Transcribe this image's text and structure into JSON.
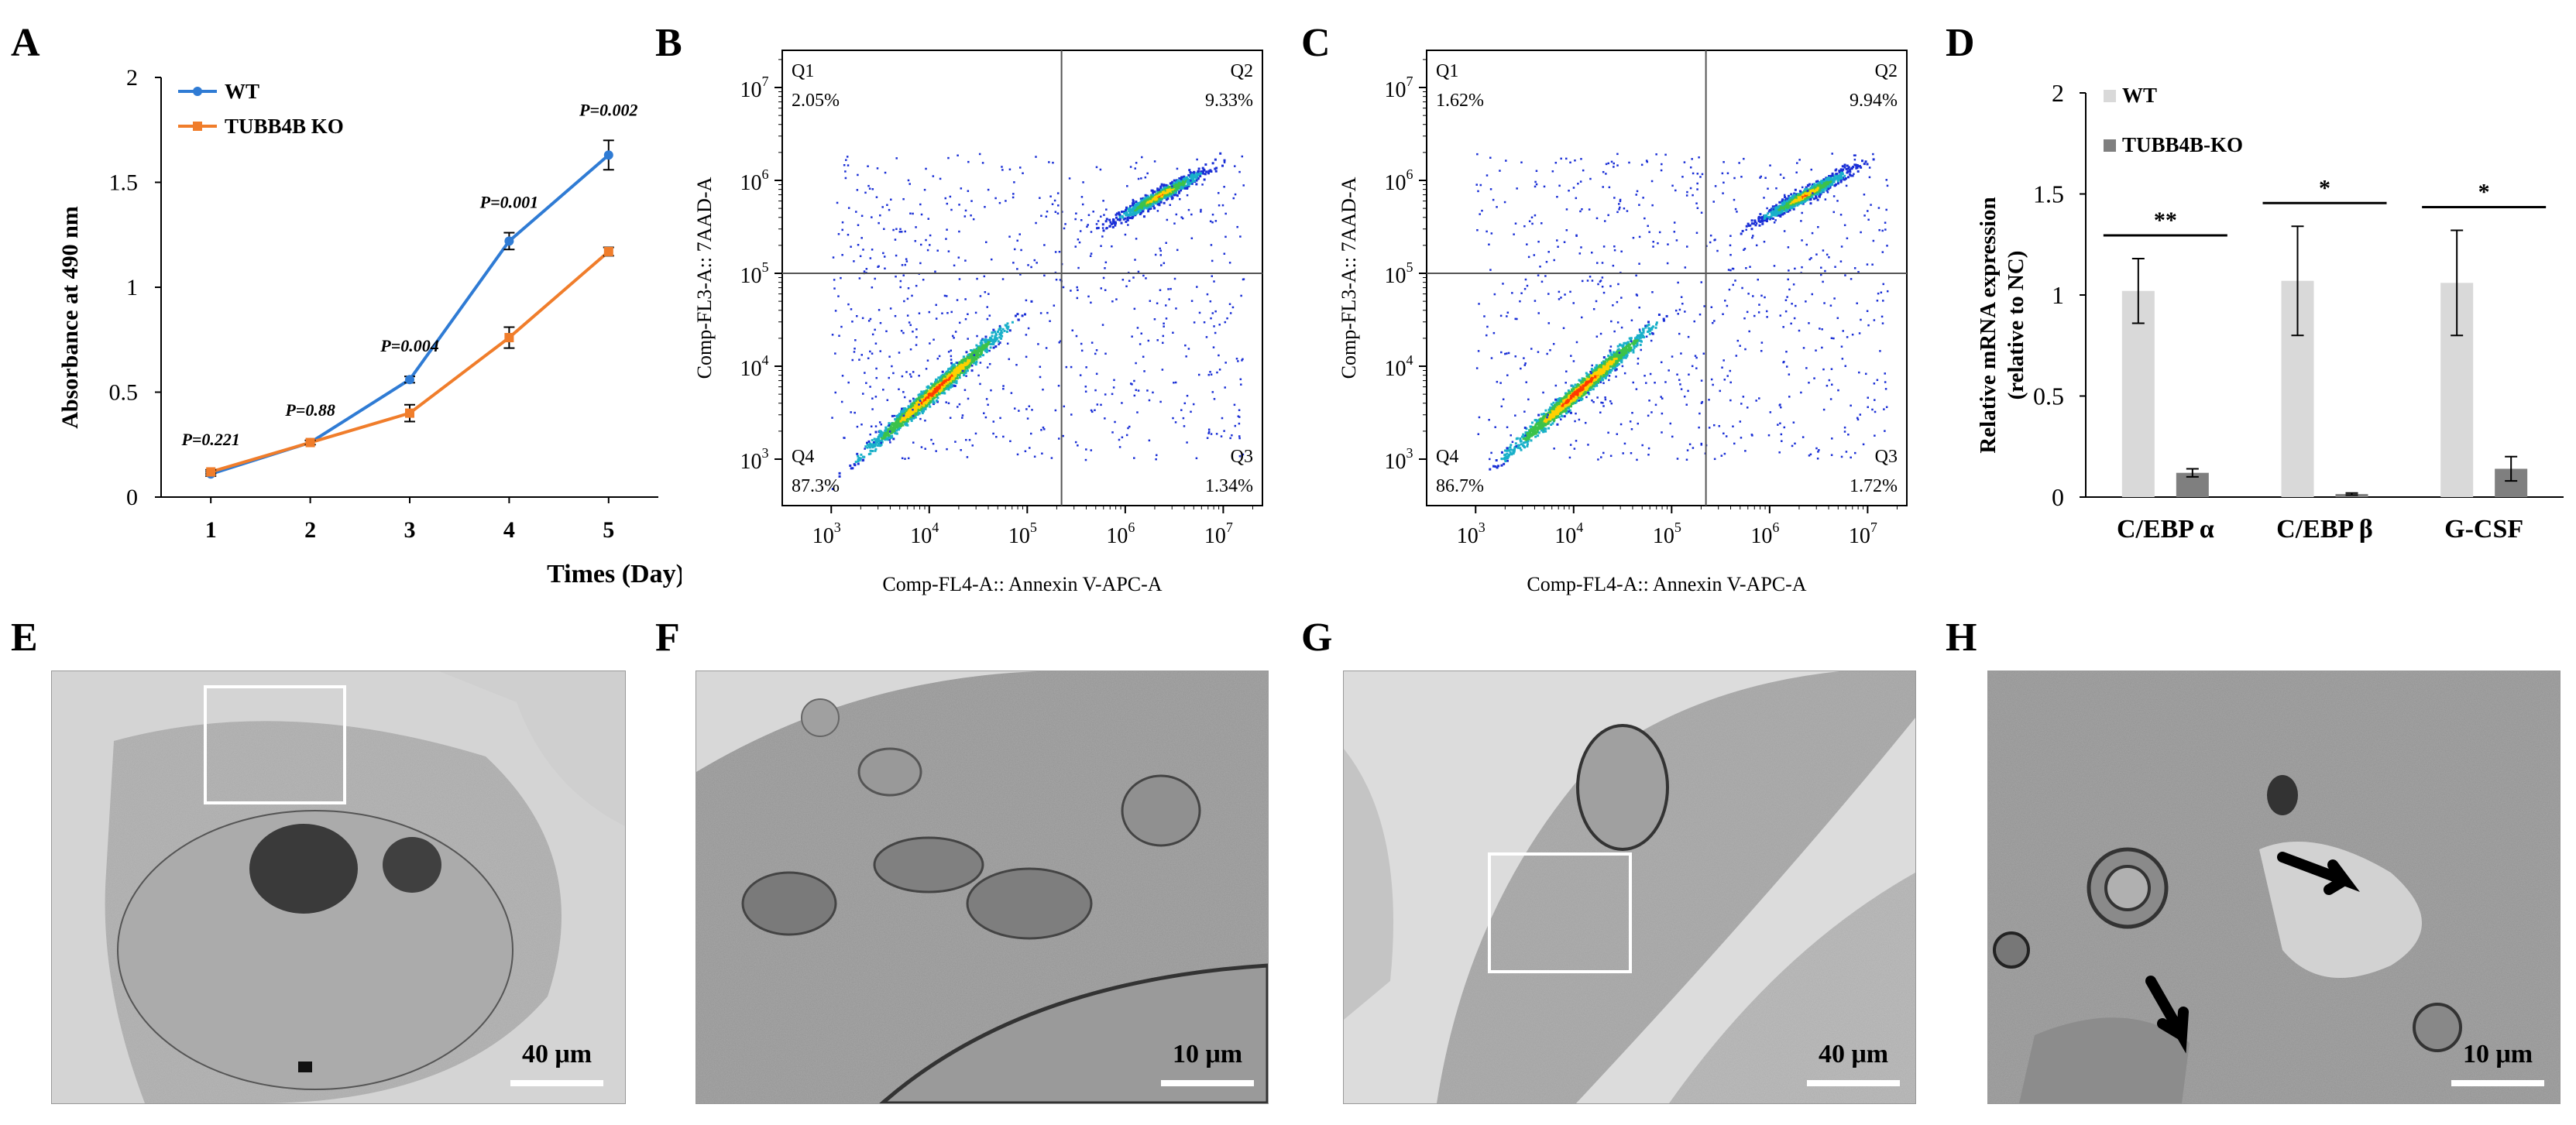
{
  "panel_letters": [
    "A",
    "B",
    "C",
    "D",
    "E",
    "F",
    "G",
    "H"
  ],
  "chart_data": [
    {
      "id": "A",
      "type": "line",
      "x": [
        1,
        2,
        3,
        4,
        5
      ],
      "xlabel": "Times (Day)",
      "ylabel": "Absorbance at 490 nm",
      "ylim": [
        0,
        2
      ],
      "yticks": [
        "0",
        "0.5",
        "1",
        "1.5",
        "2"
      ],
      "xticks": [
        "1",
        "2",
        "3",
        "4",
        "5"
      ],
      "series": [
        {
          "name": "WT",
          "color": "#2f7bd4",
          "values": [
            0.11,
            0.26,
            0.56,
            1.22,
            1.63
          ],
          "errors": [
            0.01,
            0.01,
            0.015,
            0.04,
            0.07
          ]
        },
        {
          "name": "TUBB4B KO",
          "color": "#f07d2b",
          "values": [
            0.12,
            0.26,
            0.4,
            0.76,
            1.17
          ],
          "errors": [
            0.01,
            0.01,
            0.04,
            0.05,
            0.02
          ]
        }
      ],
      "pvalues": [
        "P=0.221",
        "P=0.88",
        "P=0.004",
        "P=0.001",
        "P=0.002"
      ],
      "legend_position": "top-left"
    },
    {
      "id": "B",
      "type": "scatter",
      "xlabel": "Comp-FL4-A:: Annexin V-APC-A",
      "ylabel": "Comp-FL3-A:: 7AAD-A",
      "xtick_exps": [
        "3",
        "4",
        "5",
        "6",
        "7"
      ],
      "ytick_exps": [
        "3",
        "4",
        "5",
        "6",
        "7"
      ],
      "quadrants": [
        {
          "name": "Q1",
          "value": "2.05%"
        },
        {
          "name": "Q2",
          "value": "9.33%"
        },
        {
          "name": "Q3",
          "value": "1.34%"
        },
        {
          "name": "Q4",
          "value": "87.3%"
        }
      ]
    },
    {
      "id": "C",
      "type": "scatter",
      "xlabel": "Comp-FL4-A:: Annexin V-APC-A",
      "ylabel": "Comp-FL3-A:: 7AAD-A",
      "xtick_exps": [
        "3",
        "4",
        "5",
        "6",
        "7"
      ],
      "ytick_exps": [
        "3",
        "4",
        "5",
        "6",
        "7"
      ],
      "quadrants": [
        {
          "name": "Q1",
          "value": "1.62%"
        },
        {
          "name": "Q2",
          "value": "9.94%"
        },
        {
          "name": "Q3",
          "value": "1.72%"
        },
        {
          "name": "Q4",
          "value": "86.7%"
        }
      ]
    },
    {
      "id": "D",
      "type": "bar",
      "categories": [
        "C/EBP α",
        "C/EBP β",
        "G-CSF"
      ],
      "ylabel": "Relative mRNA expression",
      "ylabel2": "(relative to NC)",
      "ylim": [
        0,
        2
      ],
      "yticks": [
        "0",
        "0.5",
        "1",
        "1.5",
        "2"
      ],
      "series": [
        {
          "name": "WT",
          "color": "#d9d9d9",
          "values": [
            1.02,
            1.07,
            1.06
          ],
          "errors": [
            0.16,
            0.27,
            0.26
          ]
        },
        {
          "name": "TUBB4B-KO",
          "color": "#7f7f7f",
          "values": [
            0.12,
            0.015,
            0.14
          ],
          "errors": [
            0.02,
            0.005,
            0.06
          ]
        }
      ],
      "significance": [
        "**",
        "*",
        "*"
      ],
      "legend_position": "top-left"
    }
  ],
  "scale_bars": {
    "E": "40 μm",
    "F": "10 μm",
    "G": "40 μm",
    "H": "10 μm"
  }
}
